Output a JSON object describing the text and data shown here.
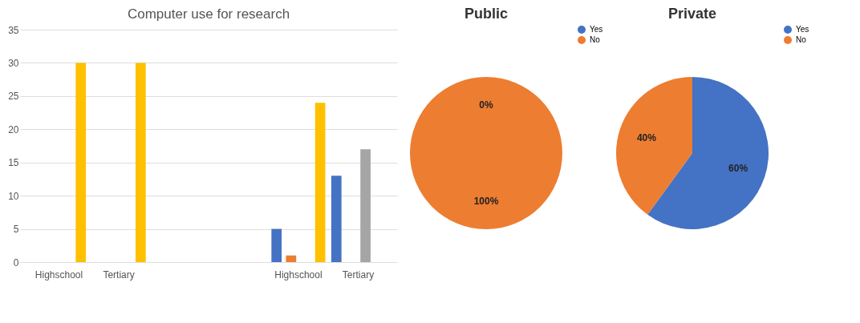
{
  "chart_data": [
    {
      "type": "bar",
      "title": "Computer use for research",
      "categories": [
        "Highschool",
        "Tertiary",
        null,
        null,
        "Highschool",
        "Tertiary"
      ],
      "series": [
        {
          "color": "#4472c4",
          "values": [
            0,
            0,
            null,
            null,
            5,
            13
          ]
        },
        {
          "color": "#ed7d31",
          "values": [
            0,
            0,
            null,
            null,
            1,
            0
          ]
        },
        {
          "color": "#a5a5a5",
          "values": [
            0,
            0,
            null,
            null,
            0,
            17
          ]
        },
        {
          "color": "#ffc000",
          "values": [
            30,
            30,
            null,
            null,
            24,
            0
          ]
        }
      ],
      "ylim": [
        0,
        35
      ],
      "yticks": [
        0,
        5,
        10,
        15,
        20,
        25,
        30,
        35
      ],
      "grid": "y"
    },
    {
      "type": "pie",
      "title": "Public",
      "categories": [
        "Yes",
        "No"
      ],
      "values": [
        0,
        100
      ],
      "colors": [
        "#4472c4",
        "#ed7d31"
      ],
      "value_labels": [
        "0%",
        "100%"
      ],
      "legend": "right"
    },
    {
      "type": "pie",
      "title": "Private",
      "categories": [
        "Yes",
        "No"
      ],
      "values": [
        60,
        40
      ],
      "colors": [
        "#4472c4",
        "#ed7d31"
      ],
      "value_labels": [
        "60%",
        "40%"
      ],
      "legend": "right"
    }
  ]
}
